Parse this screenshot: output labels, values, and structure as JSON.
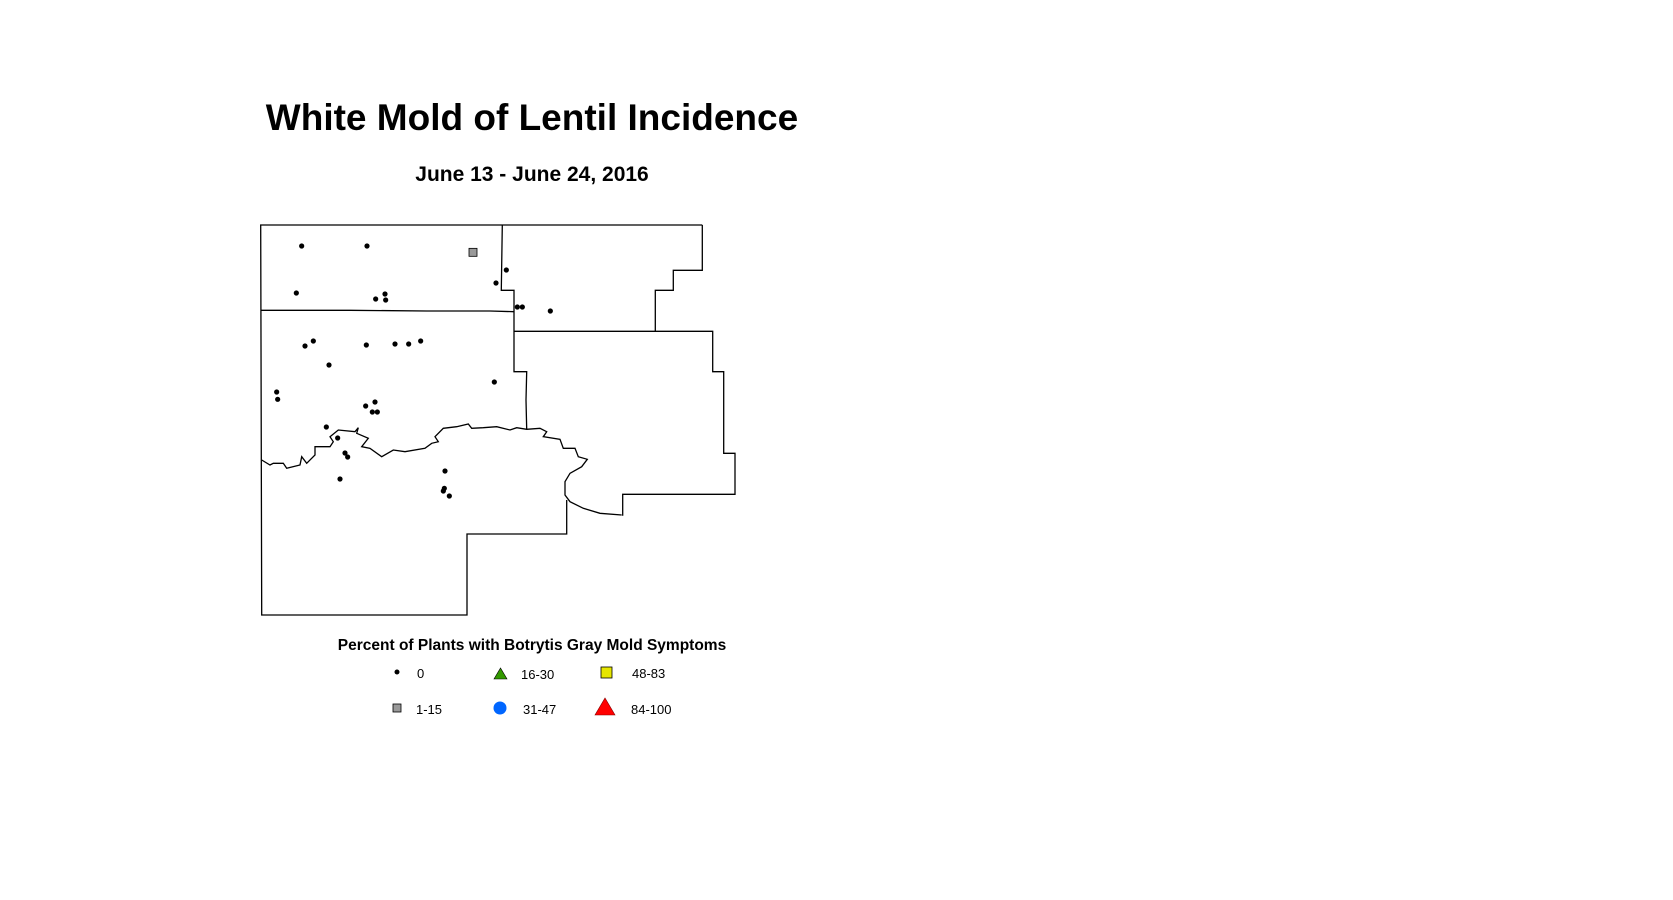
{
  "title": "White Mold of Lentil Incidence",
  "subtitle": "June 13 - June 24, 2016",
  "legend": {
    "title": "Percent of Plants with Botrytis Gray Mold Symptoms",
    "items": [
      {
        "label": "0",
        "symbol": "small-dot",
        "color": "#000000"
      },
      {
        "label": "16-30",
        "symbol": "triangle",
        "color": "#339900"
      },
      {
        "label": "48-83",
        "symbol": "square",
        "color": "#e6e600"
      },
      {
        "label": "1-15",
        "symbol": "square",
        "color": "#999999"
      },
      {
        "label": "31-47",
        "symbol": "circle",
        "color": "#0066ff"
      },
      {
        "label": "84-100",
        "symbol": "triangle",
        "color": "#ff0000"
      }
    ]
  }
}
